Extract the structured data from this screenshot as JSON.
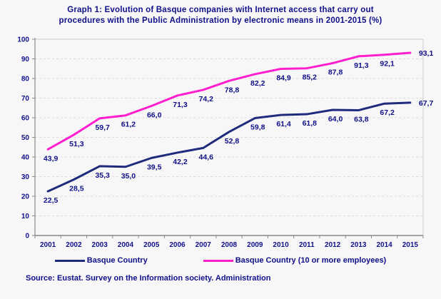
{
  "page": {
    "background": "#f7f7f7",
    "text_color": "#10108a"
  },
  "title": {
    "line1": "Graph 1: Evolution of Basque companies with Internet access that carry out",
    "line2": "procedures with the Public Administration by electronic means in 2001-2015 (%)"
  },
  "chart_data": {
    "type": "line",
    "categories": [
      "2001",
      "2002",
      "2003",
      "2004",
      "2005",
      "2006",
      "2007",
      "2008",
      "2009",
      "2010",
      "2011",
      "2012",
      "2013",
      "2014",
      "2015"
    ],
    "series": [
      {
        "name": "Basque Country",
        "color": "#1f2b7c",
        "values": [
          22.5,
          28.5,
          35.3,
          35.0,
          39.5,
          42.2,
          44.6,
          52.8,
          59.8,
          61.4,
          61.8,
          64.0,
          63.8,
          67.2,
          67.7
        ]
      },
      {
        "name": "Basque Country (10 or more employees)",
        "color": "#ff1fce",
        "values": [
          43.9,
          51.3,
          59.7,
          61.2,
          66.0,
          71.3,
          74.2,
          78.8,
          82.2,
          84.9,
          85.2,
          87.8,
          91.3,
          92.1,
          93.1
        ]
      }
    ],
    "title": "Graph 1: Evolution of Basque companies with Internet access that carry out procedures with the Public Administration by electronic means in 2001-2015 (%)",
    "xlabel": "",
    "ylabel": "",
    "ylim": [
      0,
      100
    ],
    "ytick_step": 10,
    "grid": "horizontal-dashed",
    "legend_position": "bottom",
    "data_labels": "comma-decimal",
    "label_color": "#10108a",
    "grid_color": "#dcdcdc",
    "axis_color": "#8a8a8a",
    "border_color": "#c9c9d2"
  },
  "source": {
    "text": "Source: Eustat. Survey on the Information society. Administration"
  }
}
